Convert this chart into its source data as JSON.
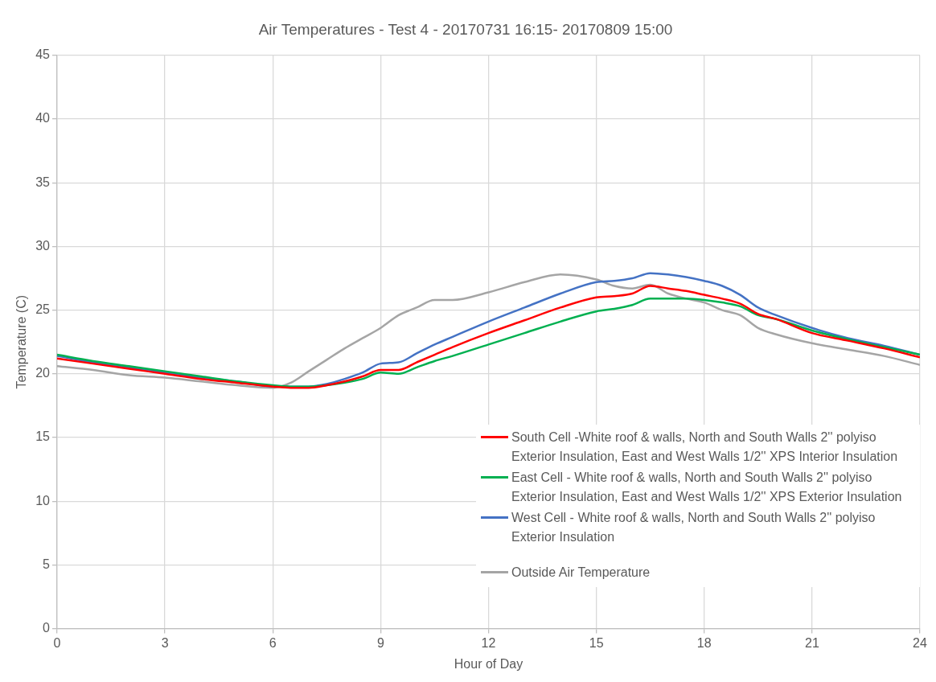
{
  "chart_data": {
    "type": "line",
    "title": "Air Temperatures - Test 4 - 20170731 16:15- 20170809 15:00",
    "xlabel": "Hour of Day",
    "ylabel": "Temperature (C)",
    "x": [
      0,
      1,
      2,
      3,
      4,
      5,
      6,
      6.5,
      7,
      7.5,
      8,
      8.5,
      9,
      9.5,
      10,
      10.5,
      11,
      12,
      13,
      14,
      15,
      15.5,
      16,
      16.5,
      17,
      17.5,
      18,
      18.5,
      19,
      19.5,
      20,
      21,
      22,
      23,
      24
    ],
    "series": [
      {
        "name": "South Cell -White roof & walls, North and South Walls 2'' polyiso Exterior Insulation, East and West Walls 1/2'' XPS Interior Insulation",
        "color": "#ff0000",
        "values": [
          21.2,
          20.8,
          20.4,
          20.0,
          19.6,
          19.3,
          19.0,
          18.9,
          18.9,
          19.1,
          19.4,
          19.8,
          20.3,
          20.3,
          20.9,
          21.5,
          22.1,
          23.2,
          24.2,
          25.2,
          26.0,
          26.1,
          26.3,
          26.9,
          26.7,
          26.5,
          26.2,
          25.9,
          25.5,
          24.7,
          24.3,
          23.2,
          22.6,
          22.0,
          21.3
        ]
      },
      {
        "name": "East Cell - White roof & walls, North and South Walls 2'' polyiso Exterior Insulation, East and West Walls 1/2'' XPS Exterior Insulation",
        "color": "#00b050",
        "values": [
          21.5,
          21.0,
          20.6,
          20.2,
          19.8,
          19.4,
          19.1,
          19.0,
          19.0,
          19.1,
          19.3,
          19.6,
          20.1,
          20.0,
          20.5,
          21.0,
          21.4,
          22.3,
          23.2,
          24.1,
          24.9,
          25.1,
          25.4,
          25.9,
          25.9,
          25.9,
          25.8,
          25.6,
          25.3,
          24.6,
          24.3,
          23.4,
          22.7,
          22.1,
          21.5
        ]
      },
      {
        "name": "West Cell - White roof & walls, North and South Walls 2'' polyiso Exterior Insulation",
        "color": "#4472c4",
        "values": [
          21.4,
          20.9,
          20.5,
          20.1,
          19.7,
          19.4,
          19.0,
          19.0,
          19.0,
          19.2,
          19.6,
          20.1,
          20.8,
          20.9,
          21.6,
          22.3,
          22.9,
          24.1,
          25.2,
          26.3,
          27.2,
          27.3,
          27.5,
          27.9,
          27.8,
          27.6,
          27.3,
          26.9,
          26.2,
          25.2,
          24.6,
          23.6,
          22.8,
          22.2,
          21.5
        ]
      },
      {
        "name": "Outside Air Temperature",
        "color": "#a5a5a5",
        "values": [
          20.6,
          20.3,
          19.9,
          19.7,
          19.4,
          19.1,
          18.9,
          19.3,
          20.2,
          21.1,
          22.0,
          22.8,
          23.6,
          24.6,
          25.2,
          25.8,
          25.8,
          26.4,
          27.2,
          27.8,
          27.4,
          26.9,
          26.7,
          27.0,
          26.3,
          25.9,
          25.6,
          25.0,
          24.6,
          23.6,
          23.1,
          22.4,
          21.9,
          21.4,
          20.7
        ]
      }
    ],
    "xlim": [
      0,
      24
    ],
    "xticks": [
      0,
      3,
      6,
      9,
      12,
      15,
      18,
      21,
      24
    ],
    "ylim": [
      0,
      45
    ],
    "yticks": [
      0,
      5,
      10,
      15,
      20,
      25,
      30,
      35,
      40,
      45
    ],
    "grid": true,
    "legend": "bottom right",
    "marker": "none",
    "line_style": "solid"
  }
}
